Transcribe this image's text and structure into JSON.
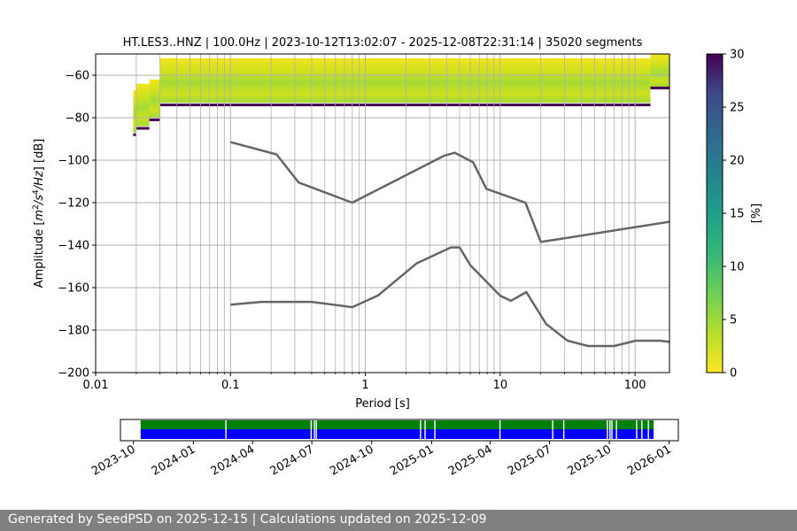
{
  "chart_data": [
    {
      "type": "heatmap",
      "title": "HT.LES3..HNZ | 100.0Hz | 2023-10-12T13:02:07 - 2025-12-08T22:31:14 | 35020 segments",
      "xlabel": "Period [s]",
      "ylabel_parts": [
        "Amplitude [",
        "m",
        "2",
        "/",
        "s",
        "4",
        "/",
        "Hz",
        "] [dB]"
      ],
      "x_scale": "log",
      "xlim": [
        0.01,
        180
      ],
      "ylim": [
        -200,
        -50
      ],
      "x_ticks": [
        {
          "value": 0.01,
          "label": "0.01"
        },
        {
          "value": 0.1,
          "label": "0.1"
        },
        {
          "value": 1,
          "label": "1"
        },
        {
          "value": 10,
          "label": "10"
        },
        {
          "value": 100,
          "label": "100"
        }
      ],
      "y_ticks": [
        {
          "value": -60,
          "label": "−60"
        },
        {
          "value": -80,
          "label": "−80"
        },
        {
          "value": -100,
          "label": "−100"
        },
        {
          "value": -120,
          "label": "−120"
        },
        {
          "value": -140,
          "label": "−140"
        },
        {
          "value": -160,
          "label": "−160"
        },
        {
          "value": -180,
          "label": "−180"
        },
        {
          "value": -200,
          "label": "−200"
        }
      ],
      "grid": true,
      "period_grid_lines": [
        0.02,
        0.03,
        0.04,
        0.05,
        0.06,
        0.07,
        0.08,
        0.09,
        0.2,
        0.3,
        0.4,
        0.5,
        0.6,
        0.7,
        0.8,
        0.9,
        2,
        3,
        4,
        5,
        6,
        7,
        8,
        9,
        20,
        30,
        40,
        50,
        60,
        70,
        80,
        90
      ],
      "colorbar": {
        "label": "[%]",
        "colormap": "viridis_r",
        "range": [
          0,
          30
        ],
        "ticks": [
          {
            "value": 0,
            "label": "0"
          },
          {
            "value": 5,
            "label": "5"
          },
          {
            "value": 10,
            "label": "10"
          },
          {
            "value": 15,
            "label": "15"
          },
          {
            "value": 20,
            "label": "20"
          },
          {
            "value": 25,
            "label": "25"
          },
          {
            "value": 30,
            "label": "30"
          }
        ]
      },
      "reference_models": [
        {
          "line_color": "#666666",
          "x": [
            0.1,
            0.22,
            0.32,
            0.8,
            3.8,
            4.6,
            6.3,
            7.9,
            15.4,
            20,
            180
          ],
          "y": [
            -91.5,
            -97.3,
            -110.5,
            -120,
            -98,
            -96.5,
            -101,
            -113.5,
            -120,
            -138.5,
            -129
          ]
        },
        {
          "line_color": "#666666",
          "x": [
            0.1,
            0.17,
            0.4,
            0.8,
            1.24,
            2.4,
            4.3,
            5,
            6,
            10,
            12,
            15.6,
            21.9,
            31.6,
            45,
            70,
            101,
            154,
            180
          ],
          "y": [
            -168,
            -166.7,
            -166.7,
            -169.2,
            -163.7,
            -148.6,
            -141.1,
            -141.1,
            -149.4,
            -163.8,
            -166.2,
            -162.1,
            -177.1,
            -185,
            -187.5,
            -187.5,
            -185,
            -185,
            -185.5
          ]
        }
      ],
      "psd_density_bands": [
        {
          "x_start": 0.019,
          "x_end": 0.02,
          "y_top": -67,
          "y_bottom": -87,
          "dark_edge_y": -88
        },
        {
          "x_start": 0.02,
          "x_end": 0.025,
          "y_top": -64,
          "y_bottom": -84,
          "dark_edge_y": -85
        },
        {
          "x_start": 0.025,
          "x_end": 0.03,
          "y_top": -62,
          "y_bottom": -80,
          "dark_edge_y": -81
        },
        {
          "x_start": 0.03,
          "x_end": 130,
          "y_top": -52,
          "y_bottom": -73,
          "dark_edge_y": -74
        },
        {
          "x_start": 130,
          "x_end": 180,
          "y_top": -50,
          "y_bottom": -66,
          "dark_edge_y": -66
        }
      ]
    },
    {
      "type": "timeline",
      "x_ticks": [
        {
          "value": "2023-10-01",
          "label": "2023-10"
        },
        {
          "value": "2024-01-01",
          "label": "2024-01"
        },
        {
          "value": "2024-04-01",
          "label": "2024-04"
        },
        {
          "value": "2024-07-01",
          "label": "2024-07"
        },
        {
          "value": "2024-10-01",
          "label": "2024-10"
        },
        {
          "value": "2025-01-01",
          "label": "2025-01"
        },
        {
          "value": "2025-04-01",
          "label": "2025-04"
        },
        {
          "value": "2025-07-01",
          "label": "2025-07"
        },
        {
          "value": "2025-10-01",
          "label": "2025-10"
        },
        {
          "value": "2026-01-01",
          "label": "2026-01"
        }
      ],
      "xlim": [
        "2023-09-11",
        "2026-01-15"
      ],
      "bars": [
        {
          "color": "#008000",
          "start": "2023-10-12",
          "end": "2025-12-08"
        },
        {
          "color": "#0000ff",
          "start": "2023-10-12",
          "end": "2025-12-08"
        }
      ],
      "gaps": [
        "2024-02-20",
        "2024-06-30",
        "2024-07-05",
        "2024-07-08",
        "2024-12-15",
        "2024-12-22",
        "2025-01-06",
        "2025-04-16",
        "2025-07-06",
        "2025-07-23",
        "2025-09-28",
        "2025-10-02",
        "2025-10-05",
        "2025-10-12",
        "2025-11-12",
        "2025-11-20",
        "2025-11-30"
      ]
    }
  ],
  "footer": {
    "text": "Generated by SeedPSD on 2025-12-15 | Calculations updated on 2025-12-09"
  }
}
